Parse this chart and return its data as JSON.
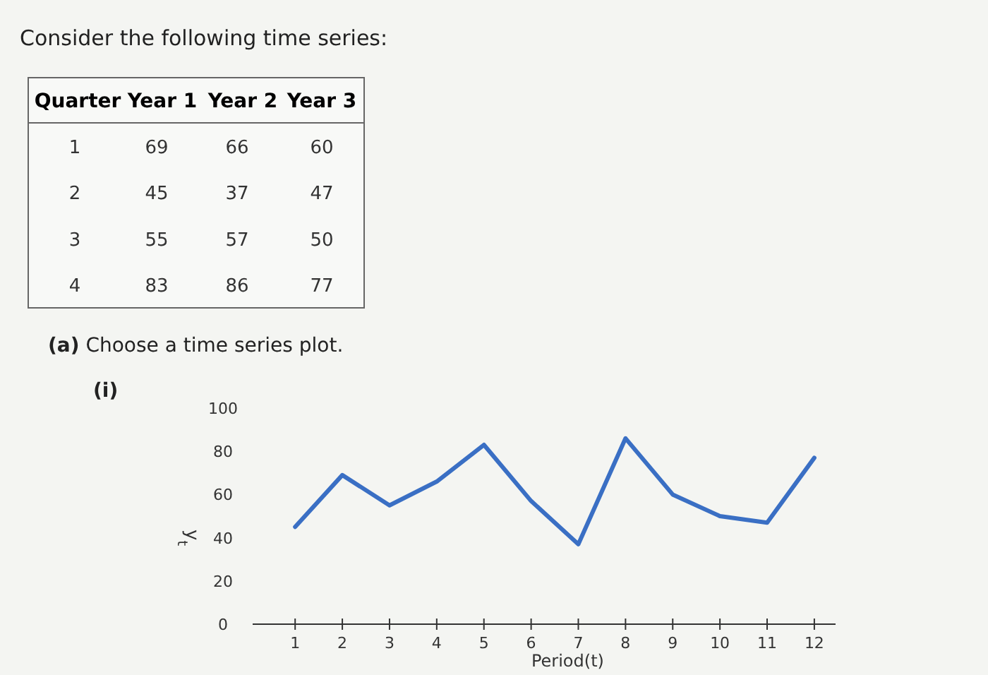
{
  "chart_data": [
    {
      "type": "heatmap",
      "title": "Consider the following time series:",
      "ylabel": "Quarter",
      "categories": [
        "Year 1",
        "Year 2",
        "Year 3"
      ],
      "y_categories": [
        "1",
        "2",
        "3",
        "4"
      ],
      "cells": [
        [
          69,
          66,
          60
        ],
        [
          45,
          37,
          47
        ],
        [
          55,
          57,
          50
        ],
        [
          83,
          86,
          77
        ]
      ],
      "data_labels": true
    },
    {
      "type": "line",
      "title": "(a) Choose a time series plot.",
      "subtitle": "(i)",
      "xlabel": "Period(t)",
      "ylabel": "y$_{t}$",
      "x": [
        1,
        2,
        3,
        4,
        5,
        6,
        7,
        8,
        9,
        10,
        11,
        12
      ],
      "series": [
        {
          "color": "#3a6fc4",
          "values": [
            45,
            69,
            55,
            66,
            83,
            57,
            37,
            86,
            60,
            50,
            47,
            77
          ]
        }
      ],
      "xlim": [
        0.1,
        12.45
      ],
      "xticks": [
        1,
        2,
        3,
        4,
        5,
        6,
        7,
        8,
        9,
        10,
        11,
        12
      ],
      "ylim": [
        0,
        100
      ],
      "yticks": [
        0,
        20,
        40,
        60,
        80,
        100
      ],
      "grid": false
    }
  ]
}
